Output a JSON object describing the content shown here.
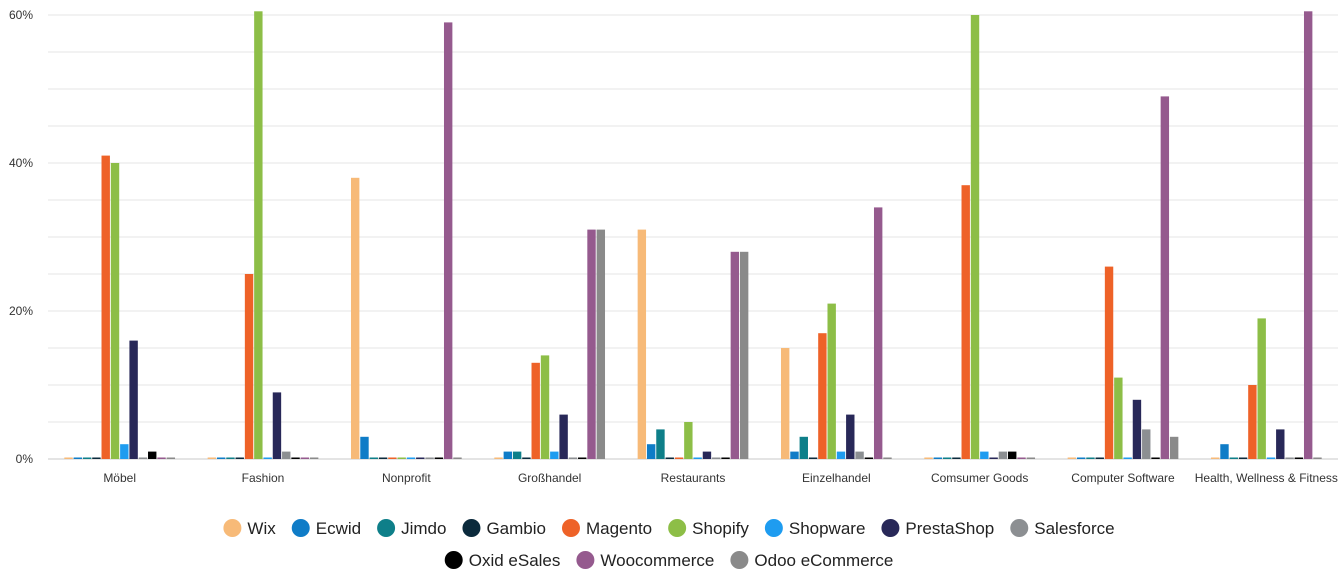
{
  "chart_data": {
    "type": "bar",
    "categories": [
      "Möbel",
      "Fashion",
      "Nonprofit",
      "Großhandel",
      "Restaurants",
      "Einzelhandel",
      "Comsumer Goods",
      "Computer Software",
      "Health, Wellness & Fitness"
    ],
    "y_ticks": [
      "0%",
      "20%",
      "40%",
      "60%"
    ],
    "ylim": [
      0,
      60.5
    ],
    "grid": true,
    "legend_position": "bottom",
    "series": [
      {
        "name": "Wix",
        "color": "#F7BA78",
        "values": [
          0,
          0,
          38,
          0,
          31,
          15,
          0,
          0,
          0
        ]
      },
      {
        "name": "Ecwid",
        "color": "#0F7CC7",
        "values": [
          0,
          0,
          3,
          1,
          2,
          1,
          0,
          0,
          2
        ]
      },
      {
        "name": "Jimdo",
        "color": "#0E7F89",
        "values": [
          0,
          0,
          0,
          1,
          4,
          3,
          0,
          0,
          0
        ]
      },
      {
        "name": "Gambio",
        "color": "#0B2A3C",
        "values": [
          0,
          0,
          0,
          0,
          0,
          0,
          0,
          0,
          0
        ]
      },
      {
        "name": "Magento",
        "color": "#EE6228",
        "values": [
          41,
          25,
          0,
          13,
          0,
          17,
          37,
          26,
          10
        ]
      },
      {
        "name": "Shopify",
        "color": "#8DBE47",
        "values": [
          40,
          62,
          0,
          14,
          5,
          21,
          60,
          11,
          19
        ]
      },
      {
        "name": "Shopware",
        "color": "#1E9CF0",
        "values": [
          2,
          0,
          0,
          1,
          0,
          1,
          1,
          0,
          0
        ]
      },
      {
        "name": "PrestaShop",
        "color": "#282858",
        "values": [
          16,
          9,
          0,
          6,
          1,
          6,
          0,
          8,
          4
        ]
      },
      {
        "name": "Salesforce",
        "color": "#8C8F92",
        "values": [
          0,
          1,
          0,
          0,
          0,
          1,
          1,
          4,
          0
        ]
      },
      {
        "name": "Oxid eSales",
        "color": "#000000",
        "values": [
          1,
          0,
          0,
          0,
          0,
          0,
          1,
          0,
          0
        ]
      },
      {
        "name": "Woocommerce",
        "color": "#955A8E",
        "values": [
          0,
          0,
          59,
          31,
          28,
          34,
          0,
          49,
          62
        ]
      },
      {
        "name": "Odoo eCommerce",
        "color": "#8A8A8A",
        "values": [
          0,
          0,
          0,
          31,
          28,
          0,
          0,
          3,
          0
        ]
      }
    ]
  }
}
